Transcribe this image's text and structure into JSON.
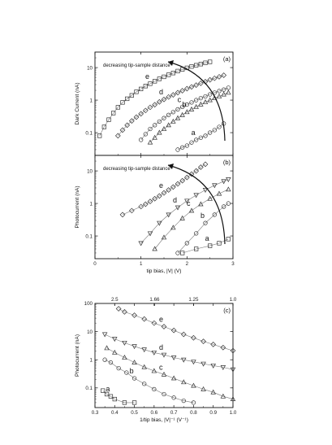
{
  "figure": {
    "colors": {
      "axis": "#111111",
      "marker": "#333333",
      "fit": "#777777",
      "arrow": "#111111"
    }
  },
  "chart_data": [
    {
      "panel": "(a)",
      "type": "scatter",
      "ylabel": "Dark Current (nA)",
      "xlabel": "",
      "xlim": [
        0,
        3
      ],
      "ylim": [
        0.02,
        30
      ],
      "yscale": "log",
      "xticks": [
        "0",
        "1",
        "2",
        "3"
      ],
      "xticks_labeled": false,
      "yticks": [
        "0.1",
        "1",
        "10"
      ],
      "annotation": "decreasing tip-sample distance",
      "series": [
        {
          "label": "e",
          "marker": "square",
          "x": [
            0.1,
            0.2,
            0.3,
            0.4,
            0.5,
            0.6,
            0.7,
            0.8,
            0.9,
            1.0,
            1.1,
            1.2,
            1.3,
            1.4,
            1.5,
            1.6,
            1.7,
            1.8,
            1.9,
            2.0,
            2.1,
            2.2,
            2.3,
            2.4,
            2.5
          ],
          "y": [
            0.08,
            0.15,
            0.25,
            0.4,
            0.6,
            0.85,
            1.1,
            1.4,
            1.8,
            2.2,
            2.7,
            3.2,
            3.8,
            4.5,
            5.2,
            6.0,
            6.8,
            7.8,
            8.8,
            9.8,
            10.8,
            11.8,
            12.8,
            14,
            15
          ]
        },
        {
          "label": "d",
          "marker": "diamond",
          "x": [
            0.5,
            0.6,
            0.7,
            0.8,
            0.9,
            1.0,
            1.1,
            1.2,
            1.3,
            1.4,
            1.5,
            1.6,
            1.7,
            1.8,
            1.9,
            2.0,
            2.1,
            2.2,
            2.3,
            2.4,
            2.5,
            2.6,
            2.7,
            2.8
          ],
          "y": [
            0.08,
            0.12,
            0.17,
            0.23,
            0.3,
            0.38,
            0.48,
            0.6,
            0.72,
            0.88,
            1.05,
            1.25,
            1.45,
            1.7,
            1.95,
            2.25,
            2.55,
            2.9,
            3.3,
            3.7,
            4.2,
            4.7,
            5.2,
            5.8
          ]
        },
        {
          "label": "c",
          "marker": "circle",
          "x": [
            1.0,
            1.1,
            1.2,
            1.3,
            1.4,
            1.5,
            1.6,
            1.7,
            1.8,
            1.9,
            2.0,
            2.1,
            2.2,
            2.3,
            2.4,
            2.5,
            2.6,
            2.7,
            2.8,
            2.9
          ],
          "y": [
            0.06,
            0.09,
            0.13,
            0.17,
            0.22,
            0.28,
            0.35,
            0.43,
            0.52,
            0.62,
            0.73,
            0.85,
            1.0,
            1.15,
            1.3,
            1.5,
            1.7,
            1.9,
            2.1,
            2.4
          ]
        },
        {
          "label": "b",
          "marker": "triangle",
          "x": [
            1.2,
            1.3,
            1.4,
            1.5,
            1.6,
            1.7,
            1.8,
            1.9,
            2.0,
            2.1,
            2.2,
            2.3,
            2.4,
            2.5,
            2.6,
            2.7,
            2.8,
            2.9
          ],
          "y": [
            0.05,
            0.07,
            0.1,
            0.13,
            0.17,
            0.22,
            0.28,
            0.35,
            0.43,
            0.52,
            0.62,
            0.74,
            0.87,
            1.0,
            1.15,
            1.3,
            1.5,
            1.7
          ]
        },
        {
          "label": "a",
          "marker": "circle",
          "x": [
            1.8,
            1.9,
            2.0,
            2.1,
            2.2,
            2.3,
            2.4,
            2.5,
            2.6,
            2.7,
            2.8
          ],
          "y": [
            0.03,
            0.035,
            0.04,
            0.05,
            0.06,
            0.07,
            0.08,
            0.1,
            0.12,
            0.15,
            0.19
          ]
        }
      ]
    },
    {
      "panel": "(b)",
      "type": "scatter",
      "ylabel": "Photocurrent (nA)",
      "xlabel": "tip bias, |V| (V)",
      "xlim": [
        0,
        3
      ],
      "ylim": [
        0.02,
        30
      ],
      "yscale": "log",
      "xticks": [
        "0",
        "1",
        "2",
        "3"
      ],
      "yticks": [
        "0.1",
        "1",
        "10"
      ],
      "top_axis_label": "",
      "top_axis_ticks": [
        "2.5",
        "1.66",
        "1.25",
        "1.0"
      ],
      "annotation": "decreasing tip-sample distance",
      "series": [
        {
          "label": "e",
          "marker": "diamond",
          "x": [
            0.6,
            0.8,
            1.0,
            1.1,
            1.2,
            1.3,
            1.4,
            1.5,
            1.6,
            1.7,
            1.8,
            1.9,
            2.0,
            2.1,
            2.2,
            2.3,
            2.4
          ],
          "y": [
            0.45,
            0.6,
            0.8,
            0.95,
            1.15,
            1.4,
            1.7,
            2.1,
            2.6,
            3.2,
            4.0,
            5.0,
            6.3,
            8.0,
            10,
            13,
            16
          ]
        },
        {
          "label": "d",
          "marker": "triangle-down",
          "x": [
            1.0,
            1.2,
            1.4,
            1.6,
            1.8,
            2.0,
            2.2,
            2.4,
            2.6,
            2.8,
            2.9
          ],
          "y": [
            0.06,
            0.12,
            0.25,
            0.45,
            0.75,
            1.2,
            1.8,
            2.6,
            3.6,
            4.8,
            5.5
          ]
        },
        {
          "label": "c",
          "marker": "triangle",
          "x": [
            1.3,
            1.5,
            1.7,
            1.9,
            2.1,
            2.3,
            2.5,
            2.7,
            2.9
          ],
          "y": [
            0.04,
            0.09,
            0.18,
            0.35,
            0.6,
            0.95,
            1.4,
            2.0,
            2.7
          ]
        },
        {
          "label": "b",
          "marker": "circle",
          "x": [
            1.8,
            2.0,
            2.2,
            2.4,
            2.6,
            2.8,
            2.9
          ],
          "y": [
            0.03,
            0.06,
            0.12,
            0.25,
            0.45,
            0.8,
            1.0
          ]
        },
        {
          "label": "a",
          "marker": "square",
          "x": [
            1.9,
            2.2,
            2.5,
            2.7,
            2.9
          ],
          "y": [
            0.03,
            0.04,
            0.05,
            0.06,
            0.08
          ]
        }
      ]
    },
    {
      "panel": "(c)",
      "type": "scatter",
      "ylabel": "Photocurrent (nA)",
      "xlabel": "1/tip bias, |V|⁻¹ (V⁻¹)",
      "xlim": [
        0.3,
        1.0
      ],
      "ylim": [
        0.02,
        100
      ],
      "yscale": "log",
      "xticks": [
        "0.3",
        "0.4",
        "0.5",
        "0.6",
        "0.7",
        "0.8",
        "0.9",
        "1.0"
      ],
      "yticks": [
        "0.1",
        "1",
        "10",
        "100"
      ],
      "series": [
        {
          "label": "e",
          "marker": "diamond",
          "x": [
            0.42,
            0.45,
            0.5,
            0.55,
            0.6,
            0.65,
            0.7,
            0.75,
            0.8,
            0.85,
            0.9,
            0.95,
            1.0
          ],
          "y": [
            65,
            50,
            38,
            28,
            20,
            15,
            11,
            8,
            6,
            4.5,
            3.5,
            2.7,
            2.1
          ]
        },
        {
          "label": "d",
          "marker": "triangle-down",
          "x": [
            0.35,
            0.4,
            0.45,
            0.5,
            0.55,
            0.6,
            0.65,
            0.7,
            0.75,
            0.8,
            0.85,
            0.9,
            0.95,
            1.0
          ],
          "y": [
            8,
            5.5,
            4,
            3,
            2.3,
            1.8,
            1.5,
            1.2,
            1.0,
            0.85,
            0.72,
            0.62,
            0.54,
            0.45
          ]
        },
        {
          "label": "c",
          "marker": "triangle",
          "x": [
            0.36,
            0.4,
            0.45,
            0.5,
            0.55,
            0.6,
            0.65,
            0.7,
            0.75,
            0.8,
            0.85,
            0.9,
            0.95,
            1.0
          ],
          "y": [
            2.6,
            1.8,
            1.2,
            0.8,
            0.55,
            0.4,
            0.3,
            0.22,
            0.16,
            0.12,
            0.09,
            0.07,
            0.05,
            0.04
          ]
        },
        {
          "label": "b",
          "marker": "circle",
          "x": [
            0.35,
            0.38,
            0.42,
            0.46,
            0.5,
            0.55,
            0.6,
            0.65,
            0.7,
            0.75,
            0.8
          ],
          "y": [
            1.0,
            0.8,
            0.5,
            0.35,
            0.22,
            0.14,
            0.09,
            0.06,
            0.045,
            0.035,
            0.03
          ]
        },
        {
          "label": "a",
          "marker": "square",
          "x": [
            0.34,
            0.36,
            0.38,
            0.4,
            0.45,
            0.5
          ],
          "y": [
            0.08,
            0.06,
            0.05,
            0.04,
            0.03,
            0.03
          ]
        }
      ]
    }
  ]
}
